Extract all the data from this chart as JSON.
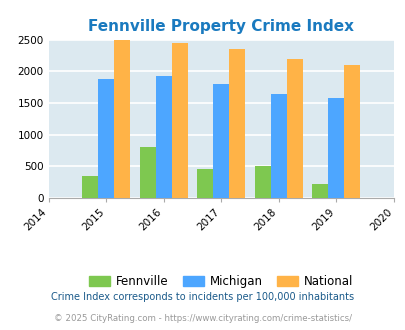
{
  "title": "Fennville Property Crime Index",
  "years": [
    2015,
    2016,
    2017,
    2018,
    2019
  ],
  "xlim": [
    2014,
    2020
  ],
  "ylim": [
    0,
    2500
  ],
  "yticks": [
    0,
    500,
    1000,
    1500,
    2000,
    2500
  ],
  "fennville": [
    350,
    800,
    450,
    500,
    220
  ],
  "michigan": [
    1880,
    1920,
    1800,
    1640,
    1580
  ],
  "national": [
    2490,
    2450,
    2350,
    2200,
    2100
  ],
  "color_fennville": "#7ec850",
  "color_michigan": "#4da6ff",
  "color_national": "#ffb347",
  "bar_width": 0.28,
  "background_color": "#dce9f0",
  "title_color": "#1a7abf",
  "grid_color": "#ffffff",
  "legend_labels": [
    "Fennville",
    "Michigan",
    "National"
  ],
  "footnote1": "Crime Index corresponds to incidents per 100,000 inhabitants",
  "footnote2": "© 2025 CityRating.com - https://www.cityrating.com/crime-statistics/",
  "footnote1_color": "#1a5a8a",
  "footnote2_color": "#999999"
}
